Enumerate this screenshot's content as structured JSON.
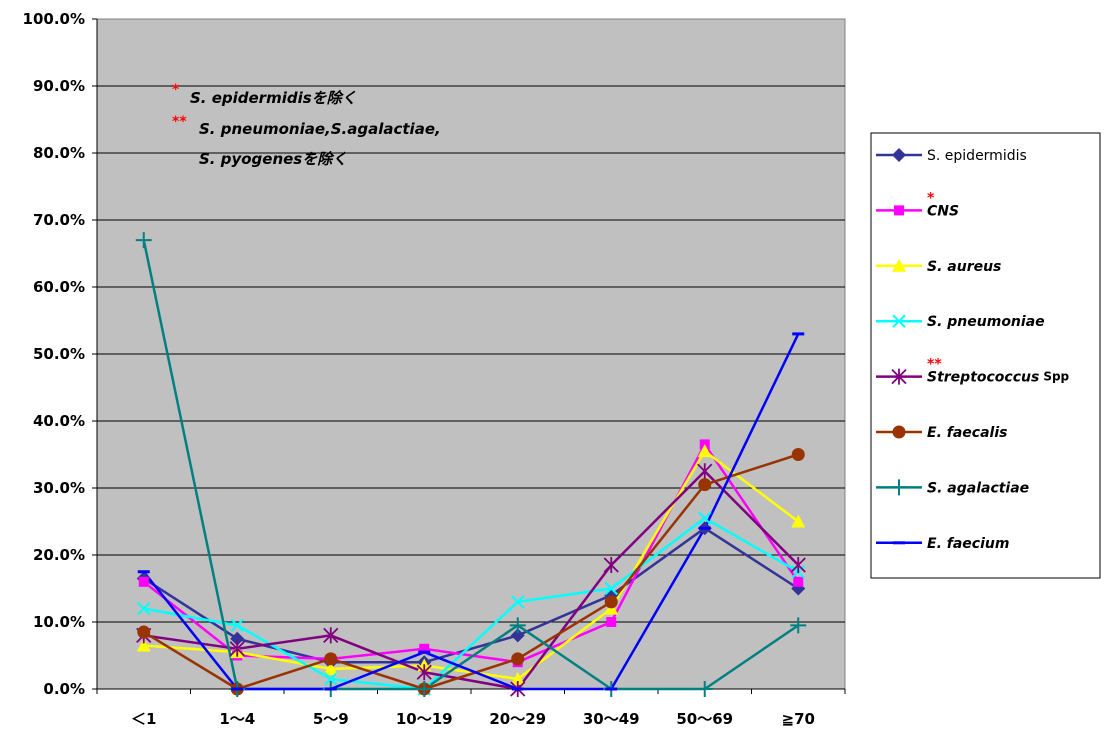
{
  "chart_data": {
    "type": "line",
    "categories": [
      "＜1",
      "1～4",
      "5～9",
      "10～19",
      "20～29",
      "30～49",
      "50～69",
      "≧70"
    ],
    "ylim": [
      0,
      100
    ],
    "yticks": [
      "0.0%",
      "10.0%",
      "20.0%",
      "30.0%",
      "40.0%",
      "50.0%",
      "60.0%",
      "70.0%",
      "80.0%",
      "90.0%",
      "100.0%"
    ],
    "ytick_values": [
      0,
      10,
      20,
      30,
      40,
      50,
      60,
      70,
      80,
      90,
      100
    ],
    "plot_background": "#c0c0c0",
    "grid": true,
    "legend_position": "right",
    "annotations": [
      {
        "mark": "*",
        "text": "S. epidermidisを除く"
      },
      {
        "mark": "**",
        "text": "S. pneumoniae,S.agalactiae,"
      },
      {
        "mark": "",
        "text": "S. pyogenesを除く"
      }
    ],
    "series": [
      {
        "name": "S. epidermidis",
        "mark": "",
        "suffix": "",
        "color": "#333399",
        "marker": "diamond",
        "italic": false,
        "values": [
          16.5,
          7.5,
          4.0,
          4.0,
          8.0,
          14.0,
          24.0,
          15.0
        ]
      },
      {
        "name": "CNS",
        "mark": "*",
        "suffix": "",
        "color": "#ff00ff",
        "marker": "square",
        "italic": true,
        "values": [
          16.0,
          5.0,
          4.5,
          6.0,
          4.0,
          10.0,
          36.5,
          16.0
        ]
      },
      {
        "name": "S. aureus",
        "mark": "",
        "suffix": "",
        "color": "#ffff00",
        "marker": "triangle",
        "italic": true,
        "values": [
          6.5,
          5.5,
          3.0,
          3.5,
          1.5,
          12.0,
          35.5,
          25.0
        ]
      },
      {
        "name": "S. pneumoniae",
        "mark": "",
        "suffix": "",
        "color": "#00ffff",
        "marker": "x",
        "italic": true,
        "values": [
          12.0,
          9.5,
          1.5,
          0.0,
          13.0,
          15.0,
          25.5,
          17.5
        ]
      },
      {
        "name": "Streptococcus",
        "mark": "**",
        "suffix": "Spp",
        "color": "#800080",
        "marker": "asterisk",
        "italic": true,
        "values": [
          8.0,
          6.0,
          8.0,
          2.5,
          0.0,
          18.5,
          32.5,
          18.5
        ]
      },
      {
        "name": "E. faecalis",
        "mark": "",
        "suffix": "",
        "color": "#993300",
        "marker": "circle",
        "italic": true,
        "values": [
          8.5,
          0.0,
          4.5,
          0.0,
          4.5,
          13.0,
          30.5,
          35.0
        ]
      },
      {
        "name": "S. agalactiae",
        "mark": "",
        "suffix": "",
        "color": "#008080",
        "marker": "plus",
        "italic": true,
        "values": [
          67.0,
          0.0,
          0.0,
          0.0,
          9.5,
          0.0,
          0.0,
          9.5
        ]
      },
      {
        "name": "E. faecium",
        "mark": "",
        "suffix": "",
        "color": "#0000ff",
        "marker": "dash",
        "italic": true,
        "values": [
          17.5,
          0.0,
          0.0,
          5.5,
          0.0,
          0.0,
          24.0,
          53.0
        ]
      }
    ]
  }
}
